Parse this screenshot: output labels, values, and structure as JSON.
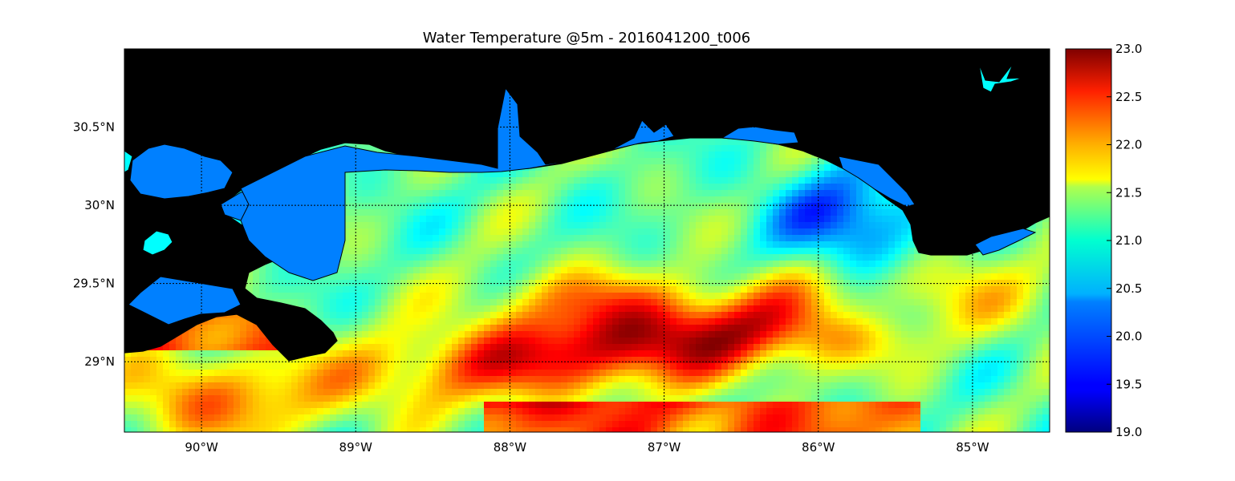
{
  "title": "Water Temperature @5m - 2016041200_t006",
  "map": {
    "lon_range": [
      -90.5,
      -84.5
    ],
    "lat_range": [
      28.55,
      31.0
    ],
    "lon_ticks": [
      -90,
      -89,
      -88,
      -87,
      -86,
      -85
    ],
    "lat_ticks": [
      29.0,
      29.5,
      30.0,
      30.5
    ],
    "lon_tick_labels": [
      "90°W",
      "89°W",
      "88°W",
      "87°W",
      "86°W",
      "85°W"
    ],
    "lat_tick_labels": [
      "29°N",
      "29.5°N",
      "30°N",
      "30.5°N"
    ],
    "grid": true,
    "colors": {
      "land": "#d2b48c",
      "inland_water": "#0080ff",
      "lake": "#00ffff",
      "coastline": "#000000"
    }
  },
  "colorbar": {
    "min": 19.0,
    "max": 23.0,
    "ticks": [
      "23.0",
      "22.5",
      "22.0",
      "21.5",
      "21.0",
      "20.5",
      "20.0",
      "19.5",
      "19.0"
    ],
    "colormap": "jet"
  }
}
